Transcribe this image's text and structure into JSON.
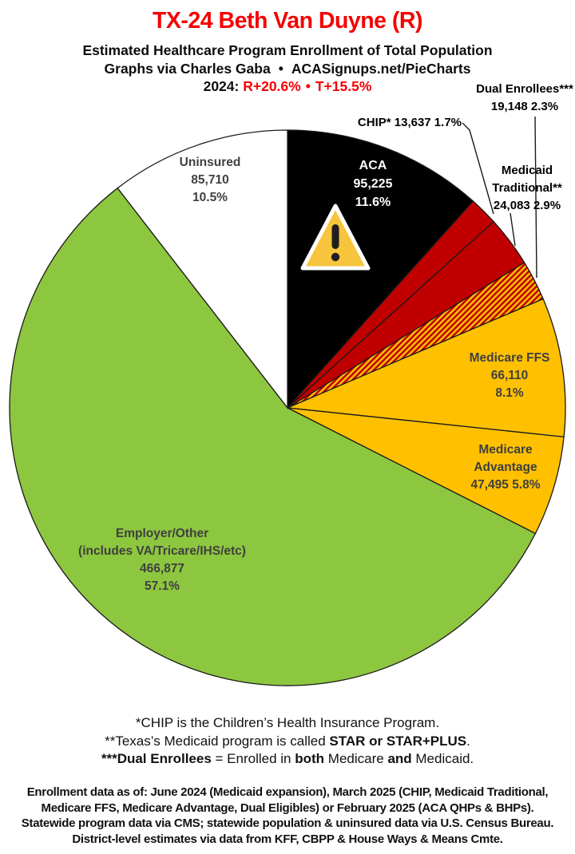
{
  "header": {
    "title": "TX-24 Beth Van Duyne (R)",
    "subtitle": "Estimated Healthcare Program Enrollment of Total Population",
    "credit_left": "Graphs via Charles Gaba",
    "credit_bullet": "•",
    "credit_right": "ACASignups.net/PieCharts",
    "partisan_label": "2024:",
    "partisan_r": "R+20.6%",
    "partisan_bullet": "•",
    "partisan_t": "T+15.5%"
  },
  "chart_data": {
    "type": "pie",
    "title": "Estimated Healthcare Program Enrollment of Total Population",
    "direction": "clockwise",
    "start_angle": "12 o'clock",
    "legend": "none (labels on or beside slices)",
    "slices": [
      {
        "name": "ACA",
        "value": 95225,
        "pct": 11.6,
        "color": "#000000",
        "label": [
          "ACA",
          "95,225",
          "11.6%"
        ]
      },
      {
        "name": "CHIP",
        "value": 13637,
        "pct": 1.7,
        "color": "#C00000",
        "label": [
          "CHIP* 13,637 1.7%"
        ]
      },
      {
        "name": "Medicaid Traditional",
        "value": 24083,
        "pct": 2.9,
        "color": "#C00000",
        "label": [
          "Medicaid",
          "Traditional**",
          "24,083 2.9%"
        ]
      },
      {
        "name": "Dual Enrollees",
        "value": 19148,
        "pct": 2.3,
        "color": "hatch",
        "label": [
          "Dual Enrollees***",
          "19,148 2.3%"
        ]
      },
      {
        "name": "Medicare FFS",
        "value": 66110,
        "pct": 8.1,
        "color": "#FFC000",
        "label": [
          "Medicare FFS",
          "66,110",
          "8.1%"
        ]
      },
      {
        "name": "Medicare Advantage",
        "value": 47495,
        "pct": 5.8,
        "color": "#FFC000",
        "label": [
          "Medicare",
          "Advantage",
          "47,495 5.8%"
        ]
      },
      {
        "name": "Employer/Other",
        "value": 466877,
        "pct": 57.1,
        "color": "#8DC73F",
        "label": [
          "Employer/Other",
          "(includes VA/Tricare/IHS/etc)",
          "466,877",
          "57.1%"
        ]
      },
      {
        "name": "Uninsured",
        "value": 85710,
        "pct": 10.5,
        "color": "#FFFFFF",
        "label": [
          "Uninsured",
          "85,710",
          "10.5%"
        ]
      }
    ],
    "hatch_colors": {
      "base": "#C00000",
      "stripe": "#FFC000"
    }
  },
  "footnotes": {
    "line1": "*CHIP is the Children’s Health Insurance Program.",
    "line2_pre": "**Texas’s Medicaid program is called ",
    "line2_bold": "STAR or STAR+PLUS",
    "line2_post": ".",
    "line3_bold1": "***Dual Enrollees",
    "line3_mid1": " = Enrolled in ",
    "line3_bold2": "both",
    "line3_mid2": " Medicare ",
    "line3_bold3": "and",
    "line3_post": " Medicaid."
  },
  "source": {
    "lines": [
      "Enrollment data as of: June 2024 (Medicaid expansion), March 2025 (CHIP, Medicaid Traditional,",
      "Medicare FFS, Medicare Advantage, Dual Eligibles) or February 2025 (ACA QHPs & BHPs).",
      "Statewide program data via CMS; statewide population & uninsured data via U.S. Census Bureau.",
      "District-level estimates via data from KFF, CBPP & House Ways & Means Cmte."
    ]
  },
  "colors": {
    "title_red": "#F40202",
    "accent_red": "#F40202",
    "slice_outline": "#1A1A1A",
    "label_gray": "#3F3F3F",
    "warning_fill": "#F7C43C"
  }
}
